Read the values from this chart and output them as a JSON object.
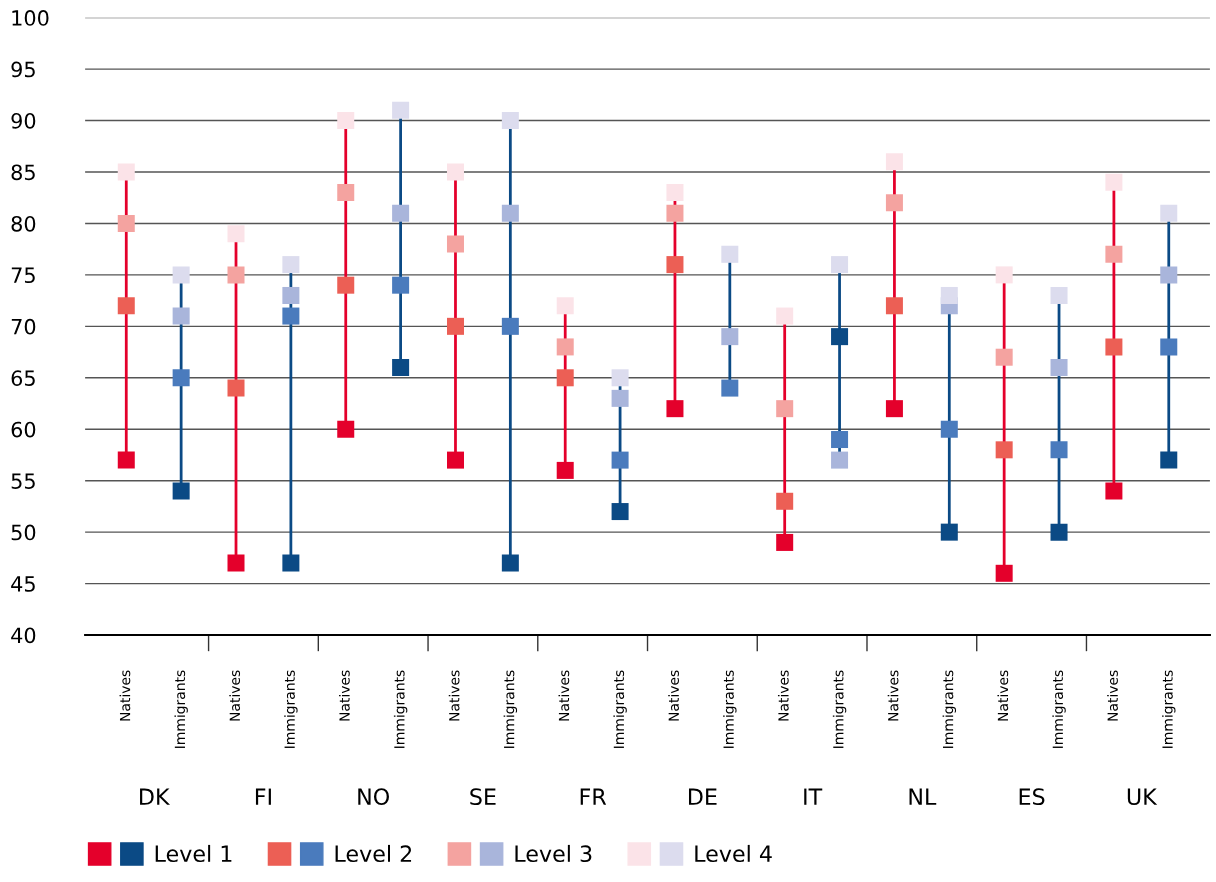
{
  "chart_data": {
    "type": "scatter",
    "marker": "square",
    "grid": "y",
    "legend": "bottom left",
    "categories": [
      "Natives",
      "Immigrants",
      "Natives",
      "Immigrants",
      "Natives",
      "Immigrants",
      "Natives",
      "Immigrants",
      "Natives",
      "Immigrants",
      "Natives",
      "Immigrants",
      "Natives",
      "Immigrants",
      "Natives",
      "Immigrants",
      "Natives",
      "Immigrants",
      "Natives",
      "Immigrants"
    ],
    "annotations": [
      "DK",
      "FI",
      "NO",
      "SE",
      "FR",
      "DE",
      "IT",
      "NL",
      "ES",
      "UK"
    ],
    "ylim": [
      40,
      100
    ],
    "yticks": [
      40,
      45,
      50,
      55,
      60,
      65,
      70,
      75,
      80,
      85,
      90,
      95,
      100
    ],
    "series": [
      {
        "name": "Level 1",
        "colors": [
          "#e4002b",
          "#0b4a85",
          "#e4002b",
          "#0b4a85",
          "#e4002b",
          "#0b4a85",
          "#e4002b",
          "#0b4a85",
          "#e4002b",
          "#0b4a85",
          "#e4002b",
          "#0b4a85",
          "#e4002b",
          "#0b4a85",
          "#e4002b",
          "#0b4a85",
          "#e4002b",
          "#0b4a85",
          "#e4002b",
          "#0b4a85"
        ],
        "values": [
          57,
          54,
          47,
          47,
          60,
          66,
          57,
          47,
          56,
          52,
          62,
          null,
          49,
          69,
          62,
          50,
          46,
          50,
          54,
          57
        ]
      },
      {
        "name": "Level 2",
        "colors": [
          "#ec5f55",
          "#4a7bbd",
          "#ec5f55",
          "#4a7bbd",
          "#ec5f55",
          "#4a7bbd",
          "#ec5f55",
          "#4a7bbd",
          "#ec5f55",
          "#4a7bbd",
          "#ec5f55",
          "#4a7bbd",
          "#ec5f55",
          "#4a7bbd",
          "#ec5f55",
          "#4a7bbd",
          "#ec5f55",
          "#4a7bbd",
          "#ec5f55",
          "#4a7bbd"
        ],
        "values": [
          72,
          65,
          64,
          71,
          74,
          74,
          70,
          70,
          65,
          57,
          76,
          64,
          53,
          59,
          72,
          60,
          58,
          58,
          68,
          68
        ]
      },
      {
        "name": "Level 3",
        "colors": [
          "#f4a3a0",
          "#a9b5db",
          "#f4a3a0",
          "#a9b5db",
          "#f4a3a0",
          "#a9b5db",
          "#f4a3a0",
          "#a9b5db",
          "#f4a3a0",
          "#a9b5db",
          "#f4a3a0",
          "#a9b5db",
          "#f4a3a0",
          "#a9b5db",
          "#f4a3a0",
          "#a9b5db",
          "#f4a3a0",
          "#a9b5db",
          "#f4a3a0",
          "#a9b5db"
        ],
        "values": [
          80,
          71,
          75,
          73,
          83,
          81,
          78,
          81,
          68,
          63,
          81,
          69,
          62,
          57,
          82,
          72,
          67,
          66,
          77,
          75
        ]
      },
      {
        "name": "Level 4",
        "colors": [
          "#fbe3e8",
          "#dcdcee",
          "#fbe3e8",
          "#dcdcee",
          "#fbe3e8",
          "#dcdcee",
          "#fbe3e8",
          "#dcdcee",
          "#fbe3e8",
          "#dcdcee",
          "#fbe3e8",
          "#dcdcee",
          "#fbe3e8",
          "#dcdcee",
          "#fbe3e8",
          "#dcdcee",
          "#fbe3e8",
          "#dcdcee",
          "#fbe3e8",
          "#dcdcee"
        ],
        "values": [
          85,
          75,
          79,
          76,
          90,
          91,
          85,
          90,
          72,
          65,
          83,
          77,
          71,
          76,
          86,
          73,
          75,
          73,
          84,
          81
        ]
      }
    ]
  }
}
